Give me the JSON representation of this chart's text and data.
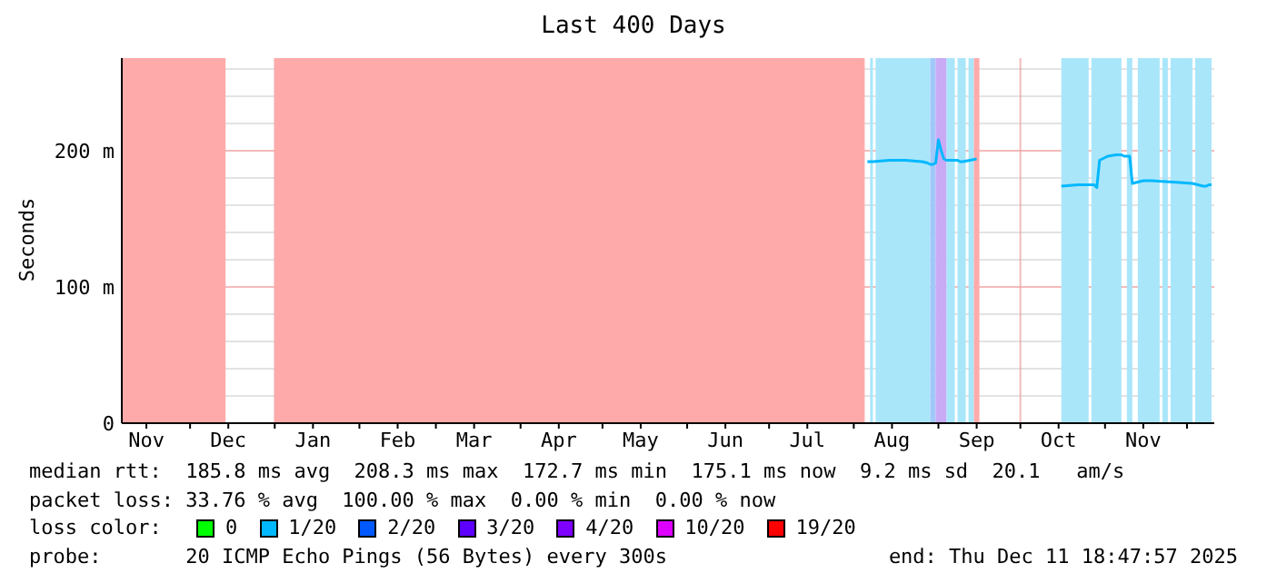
{
  "chart_data": {
    "type": "line",
    "title": "Last 400 Days",
    "ylabel": "Seconds",
    "legend_title": "loss color:",
    "legend": "bottom",
    "grid": true,
    "annotations": [
      "median rtt:  185.8 ms avg  208.3 ms max  172.7 ms min  175.1 ms now  9.2 ms sd  20.1   am/s",
      "packet loss: 33.76 % avg  100.00 % max  0.00 % min  0.00 % now",
      "probe:       20 ICMP Echo Pings (56 Bytes) every 300s",
      "end: Thu Dec 11 18:47:57 2025"
    ],
    "x": [
      "2025-08-06",
      "2025-08-07",
      "2025-08-08",
      "2025-08-14",
      "2025-08-20",
      "2025-08-26",
      "2025-08-28",
      "2025-08-29",
      "2025-08-30",
      "2025-08-31",
      "2025-09-01",
      "2025-09-02",
      "2025-09-03",
      "2025-09-04",
      "2025-09-07",
      "2025-09-08",
      "2025-09-09",
      "2025-09-10",
      "2025-09-15",
      "2025-09-16",
      "2025-10-16",
      "2025-10-22",
      "2025-10-27",
      "2025-10-28",
      "2025-10-29",
      "2025-10-30",
      "2025-11-02",
      "2025-11-05",
      "2025-11-06",
      "2025-11-07",
      "2025-11-08",
      "2025-11-10",
      "2025-11-11",
      "2025-11-15",
      "2025-11-16",
      "2025-11-17",
      "2025-11-18",
      "2025-11-26",
      "2025-12-03",
      "2025-12-07",
      "2025-12-08",
      "2025-12-09",
      "2025-12-10"
    ],
    "series": [
      {
        "name": "0",
        "color": "#00ff00",
        "values": [
          null,
          null,
          null,
          null,
          null,
          null,
          null,
          null,
          null,
          null,
          null,
          null,
          null,
          null,
          null,
          null,
          null,
          null,
          null,
          null,
          null,
          null,
          null,
          null,
          null,
          null,
          null,
          null,
          null,
          null,
          null,
          null,
          null,
          null,
          null,
          null,
          null,
          null,
          null,
          null,
          null,
          null,
          null
        ]
      },
      {
        "name": "1/20",
        "color": "#00b8ff",
        "values": [
          192,
          192,
          192,
          193,
          193,
          192,
          191,
          190,
          190,
          191,
          208,
          200,
          194,
          193,
          193,
          193,
          192,
          192,
          194,
          null,
          174,
          175,
          175,
          175,
          173,
          193,
          196,
          197,
          197,
          197,
          196,
          196,
          176,
          178,
          178,
          178,
          178,
          177,
          176,
          174,
          174,
          175,
          175
        ]
      },
      {
        "name": "2/20",
        "color": "#0059ff",
        "values": [
          null,
          null,
          null,
          null,
          null,
          null,
          null,
          null,
          null,
          null,
          null,
          null,
          null,
          null,
          null,
          null,
          null,
          null,
          null,
          null,
          null,
          null,
          null,
          null,
          null,
          null,
          null,
          null,
          null,
          null,
          null,
          null,
          null,
          null,
          null,
          null,
          null,
          null,
          null,
          null,
          null,
          null,
          null
        ]
      },
      {
        "name": "3/20",
        "color": "#5e00ff",
        "values": [
          null,
          null,
          null,
          null,
          null,
          null,
          null,
          null,
          null,
          null,
          null,
          null,
          null,
          null,
          null,
          null,
          null,
          null,
          null,
          null,
          null,
          null,
          null,
          null,
          null,
          null,
          null,
          null,
          null,
          null,
          null,
          null,
          null,
          null,
          null,
          null,
          null,
          null,
          null,
          null,
          null,
          null,
          null
        ]
      },
      {
        "name": "4/20",
        "color": "#7e00ff",
        "values": [
          null,
          null,
          null,
          null,
          null,
          null,
          null,
          null,
          null,
          null,
          null,
          null,
          null,
          null,
          null,
          null,
          null,
          null,
          null,
          null,
          null,
          null,
          null,
          null,
          null,
          null,
          null,
          null,
          null,
          null,
          null,
          null,
          null,
          null,
          null,
          null,
          null,
          null,
          null,
          null,
          null,
          null,
          null
        ]
      },
      {
        "name": "10/20",
        "color": "#dd00ff",
        "values": [
          null,
          null,
          null,
          null,
          null,
          null,
          null,
          null,
          null,
          null,
          null,
          null,
          null,
          null,
          null,
          null,
          null,
          null,
          null,
          null,
          null,
          null,
          null,
          null,
          null,
          null,
          null,
          null,
          null,
          null,
          null,
          null,
          null,
          null,
          null,
          null,
          null,
          null,
          null,
          null,
          null,
          null,
          null
        ]
      },
      {
        "name": "19/20",
        "color": "#ff0000",
        "values": [
          null,
          null,
          null,
          null,
          null,
          null,
          null,
          null,
          null,
          null,
          null,
          null,
          null,
          null,
          null,
          null,
          null,
          null,
          null,
          null,
          null,
          null,
          null,
          null,
          null,
          null,
          null,
          null,
          null,
          null,
          null,
          null,
          null,
          null,
          null,
          null,
          null,
          null,
          null,
          null,
          null,
          null,
          null
        ]
      }
    ],
    "bands": [
      {
        "axis": "x",
        "from": "2024-11-06",
        "to": "2024-12-14",
        "color": "#ffaaaa"
      },
      {
        "axis": "x",
        "from": "2025-01-01",
        "to": "2025-08-05",
        "color": "#ffaaaa"
      },
      {
        "axis": "x",
        "from": "2025-08-07",
        "to": "2025-08-08",
        "color": "#aae6fa"
      },
      {
        "axis": "x",
        "from": "2025-08-09",
        "to": "2025-08-29",
        "color": "#aae6fa"
      },
      {
        "axis": "x",
        "from": "2025-08-29",
        "to": "2025-08-31",
        "color": "#a0c8f8"
      },
      {
        "axis": "x",
        "from": "2025-08-31",
        "to": "2025-09-04",
        "color": "#c8aaf5"
      },
      {
        "axis": "x",
        "from": "2025-09-04",
        "to": "2025-09-07",
        "color": "#aae6fa"
      },
      {
        "axis": "x",
        "from": "2025-09-08",
        "to": "2025-09-11",
        "color": "#aae6fa"
      },
      {
        "axis": "x",
        "from": "2025-09-12",
        "to": "2025-09-14",
        "color": "#aae6fa"
      },
      {
        "axis": "x",
        "from": "2025-09-14",
        "to": "2025-09-16",
        "color": "#ffaaaa"
      },
      {
        "axis": "x",
        "from": "2025-10-16",
        "to": "2025-10-26",
        "color": "#aae6fa"
      },
      {
        "axis": "x",
        "from": "2025-10-27",
        "to": "2025-11-07",
        "color": "#aae6fa"
      },
      {
        "axis": "x",
        "from": "2025-11-09",
        "to": "2025-11-11",
        "color": "#aae6fa"
      },
      {
        "axis": "x",
        "from": "2025-11-13",
        "to": "2025-11-21",
        "color": "#aae6fa"
      },
      {
        "axis": "x",
        "from": "2025-11-22",
        "to": "2025-11-24",
        "color": "#aae6fa"
      },
      {
        "axis": "x",
        "from": "2025-11-25",
        "to": "2025-12-03",
        "color": "#aae6fa"
      },
      {
        "axis": "x",
        "from": "2025-12-04",
        "to": "2025-12-10",
        "color": "#aae6fa"
      }
    ],
    "xlim": [
      "2024-11-06",
      "2025-12-11"
    ],
    "xticks": [
      {
        "value": "2024-11-15",
        "label": "Nov"
      },
      {
        "value": "2024-12-01",
        "label": null
      },
      {
        "value": "2024-12-15",
        "label": "Dec"
      },
      {
        "value": "2025-01-01",
        "label": null
      },
      {
        "value": "2025-01-15",
        "label": "Jan"
      },
      {
        "value": "2025-02-01",
        "label": null
      },
      {
        "value": "2025-02-15",
        "label": "Feb"
      },
      {
        "value": "2025-03-01",
        "label": null
      },
      {
        "value": "2025-03-15",
        "label": "Mar"
      },
      {
        "value": "2025-04-01",
        "label": null
      },
      {
        "value": "2025-04-15",
        "label": "Apr"
      },
      {
        "value": "2025-05-01",
        "label": null
      },
      {
        "value": "2025-05-15",
        "label": "May"
      },
      {
        "value": "2025-06-01",
        "label": null
      },
      {
        "value": "2025-06-15",
        "label": "Jun"
      },
      {
        "value": "2025-07-01",
        "label": null
      },
      {
        "value": "2025-07-15",
        "label": "Jul"
      },
      {
        "value": "2025-08-01",
        "label": null
      },
      {
        "value": "2025-08-15",
        "label": "Aug"
      },
      {
        "value": "2025-09-01",
        "label": null
      },
      {
        "value": "2025-09-15",
        "label": "Sep"
      },
      {
        "value": "2025-10-01",
        "label": null
      },
      {
        "value": "2025-10-15",
        "label": "Oct"
      },
      {
        "value": "2025-11-01",
        "label": null
      },
      {
        "value": "2025-11-15",
        "label": "Nov"
      },
      {
        "value": "2025-12-01",
        "label": null
      }
    ],
    "ylim": [
      0,
      268
    ],
    "yticks": [
      0,
      {
        "value": 20,
        "label": null
      },
      {
        "value": 40,
        "label": null
      },
      {
        "value": 60,
        "label": null
      },
      {
        "value": 80,
        "label": null
      },
      {
        "value": 100,
        "label": "100 m"
      },
      {
        "value": 120,
        "label": null
      },
      {
        "value": 140,
        "label": null
      },
      {
        "value": 160,
        "label": null
      },
      {
        "value": 180,
        "label": null
      },
      {
        "value": 200,
        "label": "200 m"
      },
      {
        "value": 220,
        "label": null
      },
      {
        "value": 240,
        "label": null
      },
      {
        "value": 260,
        "label": null
      }
    ]
  }
}
